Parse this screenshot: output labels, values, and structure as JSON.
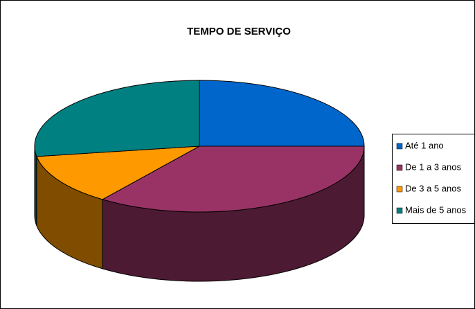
{
  "chart_data": {
    "type": "pie",
    "title": "TEMPO DE SERVIÇO",
    "categories": [
      "Até 1 ano",
      "De 1 a 3 anos",
      "De 3 a 5 anos",
      "Mais de 5 anos"
    ],
    "values": [
      25,
      35,
      12.5,
      27.5
    ],
    "colors": [
      "#0066cc",
      "#993366",
      "#ff9900",
      "#008080"
    ],
    "side_colors": [
      "#00336b",
      "#4d1a33",
      "#7f4c00",
      "#004040"
    ],
    "legend": "right"
  }
}
